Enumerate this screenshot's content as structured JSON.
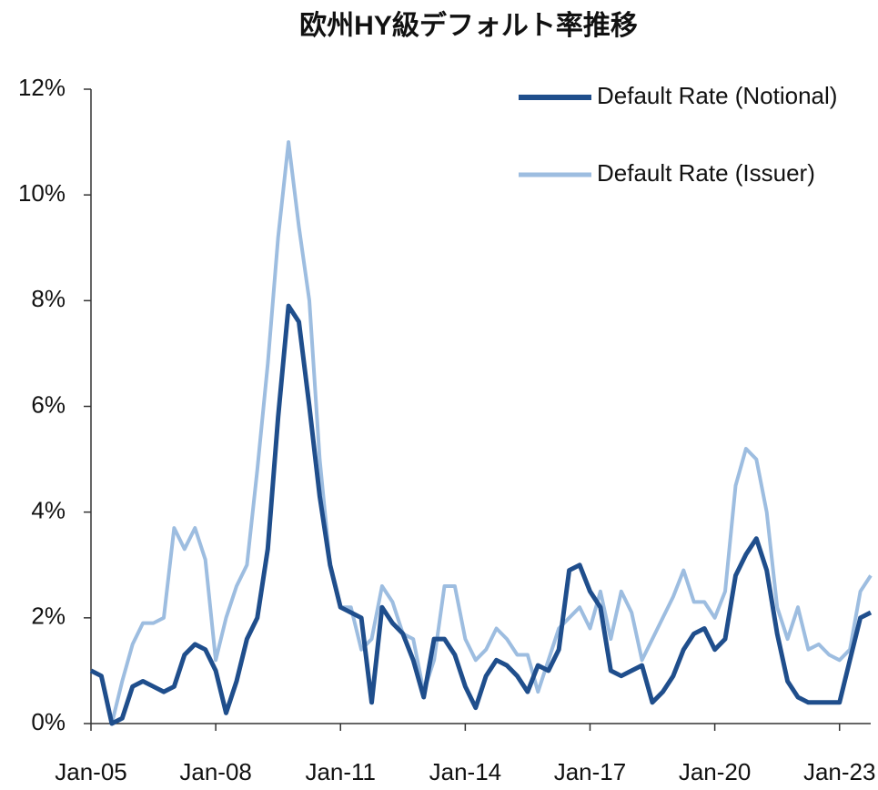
{
  "chart_data": {
    "type": "line",
    "title": "欧州HY級デフォルト率推移",
    "x": [
      "Jan-05",
      "Apr-05",
      "Jul-05",
      "Oct-05",
      "Jan-06",
      "Apr-06",
      "Jul-06",
      "Oct-06",
      "Jan-07",
      "Apr-07",
      "Jul-07",
      "Oct-07",
      "Jan-08",
      "Apr-08",
      "Jul-08",
      "Oct-08",
      "Jan-09",
      "Apr-09",
      "Jul-09",
      "Oct-09",
      "Jan-10",
      "Apr-10",
      "Jul-10",
      "Oct-10",
      "Jan-11",
      "Apr-11",
      "Jul-11",
      "Oct-11",
      "Jan-12",
      "Apr-12",
      "Jul-12",
      "Oct-12",
      "Jan-13",
      "Apr-13",
      "Jul-13",
      "Oct-13",
      "Jan-14",
      "Apr-14",
      "Jul-14",
      "Oct-14",
      "Jan-15",
      "Apr-15",
      "Jul-15",
      "Oct-15",
      "Jan-16",
      "Apr-16",
      "Jul-16",
      "Oct-16",
      "Jan-17",
      "Apr-17",
      "Jul-17",
      "Oct-17",
      "Jan-18",
      "Apr-18",
      "Jul-18",
      "Oct-18",
      "Jan-19",
      "Apr-19",
      "Jul-19",
      "Oct-19",
      "Jan-20",
      "Apr-20",
      "Jul-20",
      "Oct-20",
      "Jan-21",
      "Apr-21",
      "Jul-21",
      "Oct-21",
      "Jan-22",
      "Apr-22",
      "Jul-22",
      "Oct-22",
      "Jan-23",
      "Apr-23",
      "Jul-23",
      "Oct-23"
    ],
    "xticks": [
      "Jan-05",
      "Jan-08",
      "Jan-11",
      "Jan-14",
      "Jan-17",
      "Jan-20",
      "Jan-23"
    ],
    "series": [
      {
        "name": "Default Rate (Notional)",
        "color": "#1f4e8c",
        "width": 5,
        "values": [
          1.0,
          0.9,
          0.0,
          0.1,
          0.7,
          0.8,
          0.7,
          0.6,
          0.7,
          1.3,
          1.5,
          1.4,
          1.0,
          0.2,
          0.8,
          1.6,
          2.0,
          3.3,
          5.8,
          7.9,
          7.6,
          6.0,
          4.3,
          3.0,
          2.2,
          2.1,
          2.0,
          0.4,
          2.2,
          1.9,
          1.7,
          1.2,
          0.5,
          1.6,
          1.6,
          1.3,
          0.7,
          0.3,
          0.9,
          1.2,
          1.1,
          0.9,
          0.6,
          1.1,
          1.0,
          1.4,
          2.9,
          3.0,
          2.5,
          2.2,
          1.0,
          0.9,
          1.0,
          1.1,
          0.4,
          0.6,
          0.9,
          1.4,
          1.7,
          1.8,
          1.4,
          1.6,
          2.8,
          3.2,
          3.5,
          2.9,
          1.7,
          0.8,
          0.5,
          0.4,
          0.4,
          0.4,
          0.4,
          1.2,
          2.0,
          2.1
        ]
      },
      {
        "name": "Default Rate (Issuer)",
        "color": "#9dbde0",
        "width": 4,
        "values": [
          1.0,
          0.9,
          0.0,
          0.8,
          1.5,
          1.9,
          1.9,
          2.0,
          3.7,
          3.3,
          3.7,
          3.1,
          1.2,
          2.0,
          2.6,
          3.0,
          4.8,
          6.8,
          9.2,
          11.0,
          9.4,
          8.0,
          5.0,
          3.0,
          2.2,
          2.2,
          1.4,
          1.6,
          2.6,
          2.3,
          1.7,
          1.6,
          0.6,
          1.2,
          2.6,
          2.6,
          1.6,
          1.2,
          1.4,
          1.8,
          1.6,
          1.3,
          1.3,
          0.6,
          1.2,
          1.8,
          2.0,
          2.2,
          1.8,
          2.5,
          1.6,
          2.5,
          2.1,
          1.2,
          1.6,
          2.0,
          2.4,
          2.9,
          2.3,
          2.3,
          2.0,
          2.5,
          4.5,
          5.2,
          5.0,
          4.0,
          2.2,
          1.6,
          2.2,
          1.4,
          1.5,
          1.3,
          1.2,
          1.4,
          2.5,
          2.8
        ]
      }
    ],
    "ylim": [
      0,
      12
    ],
    "yticks": [
      {
        "value": 0,
        "label": "0%"
      },
      {
        "value": 2,
        "label": "2%"
      },
      {
        "value": 4,
        "label": "4%"
      },
      {
        "value": 6,
        "label": "6%"
      },
      {
        "value": 8,
        "label": "8%"
      },
      {
        "value": 10,
        "label": "10%"
      },
      {
        "value": 12,
        "label": "12%"
      }
    ],
    "legend": "top-right"
  }
}
